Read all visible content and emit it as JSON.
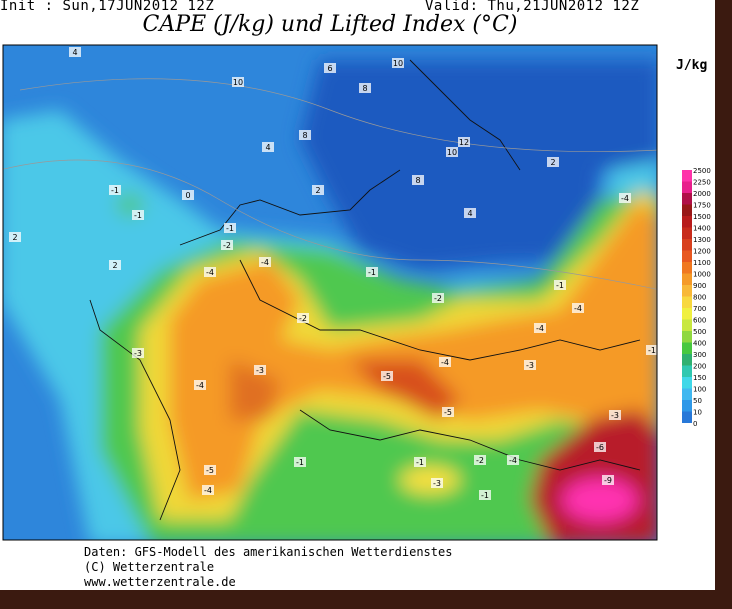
{
  "header": {
    "init": "Init : Sun,17JUN2012 12Z",
    "valid": "Valid: Thu,21JUN2012 12Z",
    "title": "CAPE (J/kg) und Lifted Index (°C)"
  },
  "colorbar": {
    "unit": "J/kg",
    "levels": [
      "2500",
      "2250",
      "2000",
      "1750",
      "1500",
      "1400",
      "1300",
      "1200",
      "1100",
      "1000",
      "900",
      "800",
      "700",
      "600",
      "500",
      "400",
      "300",
      "200",
      "150",
      "100",
      "50",
      "10",
      "0"
    ]
  },
  "map": {
    "contour_labels": [
      "4",
      "10",
      "6",
      "10",
      "8",
      "4",
      "8",
      "12",
      "10",
      "2",
      "8",
      "4",
      "0",
      "2",
      "-1",
      "-1",
      "2",
      "-1",
      "-2",
      "-4",
      "-4",
      "-1",
      "-2",
      "-1",
      "-4",
      "-4",
      "-2",
      "-3",
      "-3",
      "-4",
      "-5",
      "-4",
      "-3",
      "-5",
      "-3",
      "-6",
      "-9",
      "-5",
      "-4",
      "-1",
      "-1",
      "-2",
      "-3",
      "-1",
      "-4",
      "-4",
      "-1",
      "2"
    ]
  },
  "footer": {
    "source": "Daten: GFS-Modell des amerikanischen Wetterdienstes",
    "copyright": "(C) Wetterzentrale",
    "website": "www.wetterzentrale.de"
  }
}
